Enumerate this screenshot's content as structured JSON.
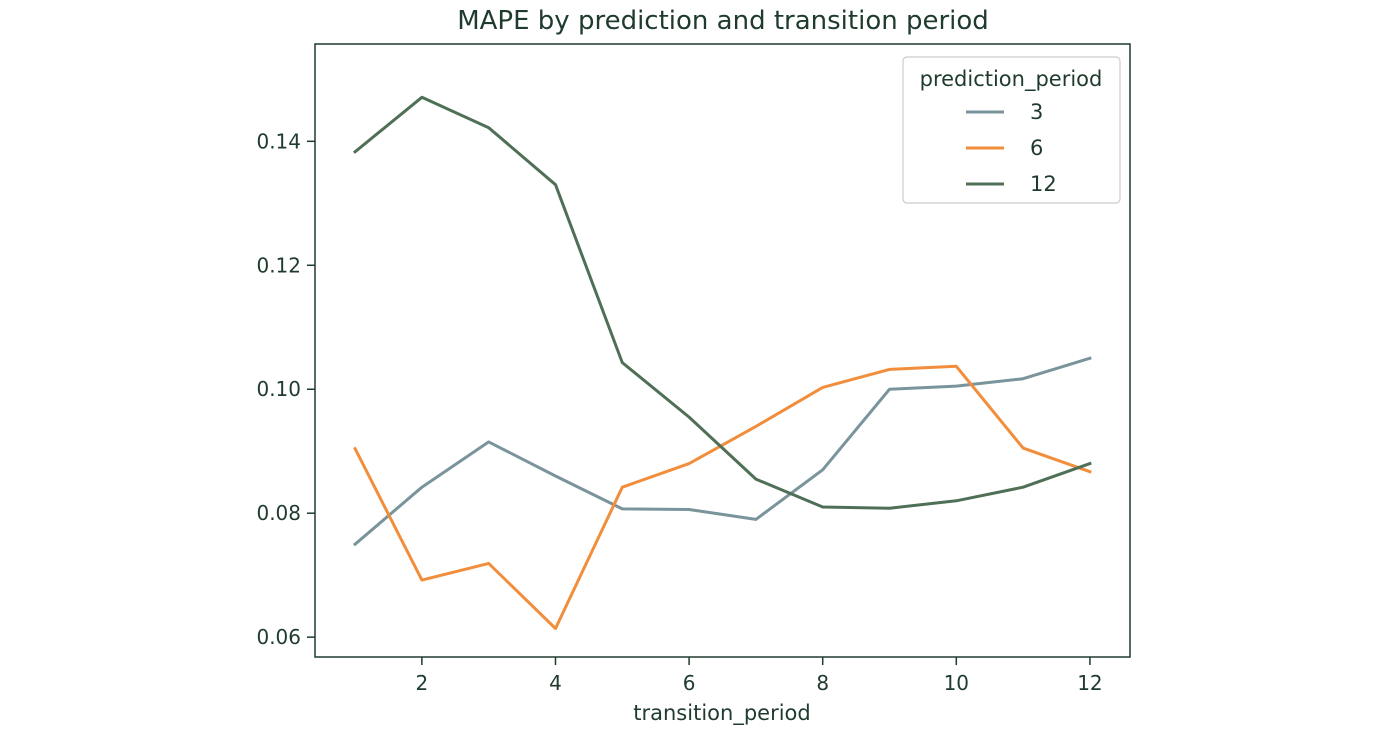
{
  "chart_data": {
    "type": "line",
    "title": "MAPE by prediction and transition period",
    "xlabel": "transition_period",
    "ylabel": "",
    "x": [
      1,
      2,
      3,
      4,
      5,
      6,
      7,
      8,
      9,
      10,
      11,
      12
    ],
    "xlim": [
      0.4,
      12.6
    ],
    "ylim": [
      0.0568,
      0.1557
    ],
    "xticks": [
      2,
      4,
      6,
      8,
      10,
      12
    ],
    "yticks": [
      0.06,
      0.08,
      0.1,
      0.12,
      0.14
    ],
    "xtick_labels": [
      "2",
      "4",
      "6",
      "8",
      "10",
      "12"
    ],
    "ytick_labels": [
      "0.06",
      "0.08",
      "0.10",
      "0.12",
      "0.14"
    ],
    "grid": false,
    "legend": {
      "title": "prediction_period",
      "placement": "top-right"
    },
    "series": [
      {
        "name": "3",
        "color": "#7a949c",
        "values": [
          0.075,
          0.0842,
          0.0915,
          0.086,
          0.0807,
          0.0806,
          0.079,
          0.087,
          0.1,
          0.1005,
          0.1017,
          0.105
        ]
      },
      {
        "name": "6",
        "color": "#f28e3b",
        "values": [
          0.0904,
          0.0692,
          0.0719,
          0.0614,
          0.0842,
          0.088,
          0.094,
          0.1003,
          0.1032,
          0.1037,
          0.0905,
          0.0867
        ]
      },
      {
        "name": "12",
        "color": "#4f6f57",
        "values": [
          0.1383,
          0.1471,
          0.1422,
          0.133,
          0.1043,
          0.0955,
          0.0855,
          0.081,
          0.0808,
          0.082,
          0.0842,
          0.088
        ]
      }
    ]
  }
}
